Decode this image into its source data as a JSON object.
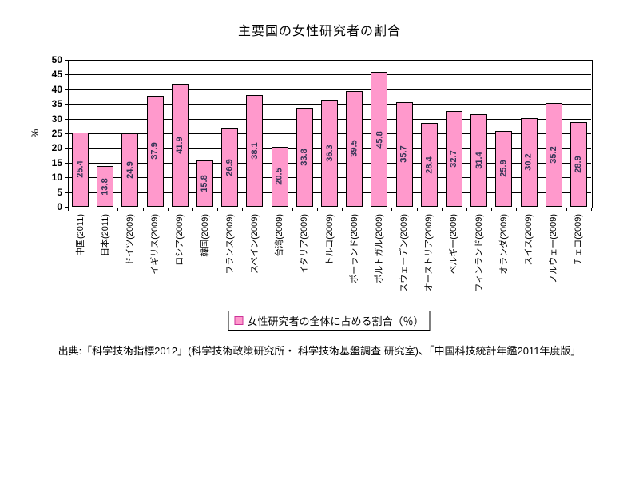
{
  "title": "主要国の女性研究者の割合",
  "legend": {
    "label": "女性研究者の全体に占める割合（％）"
  },
  "source_note": "出典:「科学技術指標2012」(科学技術政策研究所・ 科学技術基盤調査 研究室)、「中国科技統計年鑑2011年度版」",
  "chart_data": {
    "type": "bar",
    "title": "主要国の女性研究者の割合",
    "categories": [
      "中国(2011)",
      "日本(2011)",
      "ドイツ(2009)",
      "イギリス(2009)",
      "ロシア(2009)",
      "韓国(2009)",
      "フランス(2009)",
      "スペイン(2009)",
      "台湾(2009)",
      "イタリア(2009)",
      "トルコ(2009)",
      "ポーランド(2009)",
      "ポルトガル(2009)",
      "スウェーデン(2009)",
      "オーストリア(2009)",
      "ベルギー(2009)",
      "フィンランド(2009)",
      "オランダ(2009)",
      "スイス(2009)",
      "ノルウェー(2009)",
      "チェコ(2009)"
    ],
    "values": [
      25.4,
      13.8,
      24.9,
      37.9,
      41.9,
      15.8,
      26.9,
      38.1,
      20.5,
      33.8,
      36.3,
      39.5,
      45.8,
      35.7,
      28.4,
      32.7,
      31.4,
      25.9,
      30.2,
      35.2,
      28.9
    ],
    "xlabel": "",
    "ylabel": "%",
    "ylim": [
      0,
      50
    ],
    "ytick_step": 5,
    "grid": true,
    "legend_entries": [
      "女性研究者の全体に占める割合（％）"
    ],
    "legend_position": "bottom",
    "colors": {
      "bar_fill": "#FF99CC",
      "bar_border": "#000000",
      "gridline": "#000000",
      "legend_marker_border": "#CC3399",
      "value_label": "#333355"
    }
  }
}
